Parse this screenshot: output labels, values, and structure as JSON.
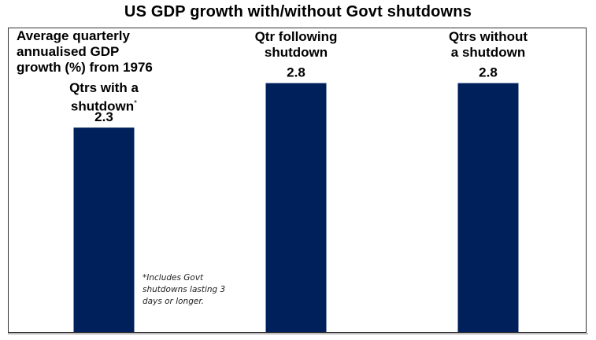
{
  "chart_data": {
    "type": "bar",
    "title": "US GDP growth with/without Govt shutdowns",
    "ylabel": "Average quarterly annualised GDP growth (%) from 1976",
    "xlabel": "",
    "categories": [
      "Qtrs with a shutdown*",
      "Qtr following shutdown",
      "Qtrs without a shutdown"
    ],
    "category_lines": [
      [
        "Qtrs with a",
        "shutdown"
      ],
      [
        "Qtr following",
        "shutdown"
      ],
      [
        "Qtrs without",
        "a shutdown"
      ]
    ],
    "values": [
      2.3,
      2.8,
      2.8
    ],
    "data_labels": [
      "2.3",
      "2.8",
      "2.8"
    ],
    "ylim": [
      0,
      3.5
    ],
    "grid": false,
    "bar_color": "#00205B",
    "footnote_lines": [
      "*Includes Govt",
      "shutdowns lasting 3",
      "days or longer."
    ],
    "asterisk": "*"
  }
}
